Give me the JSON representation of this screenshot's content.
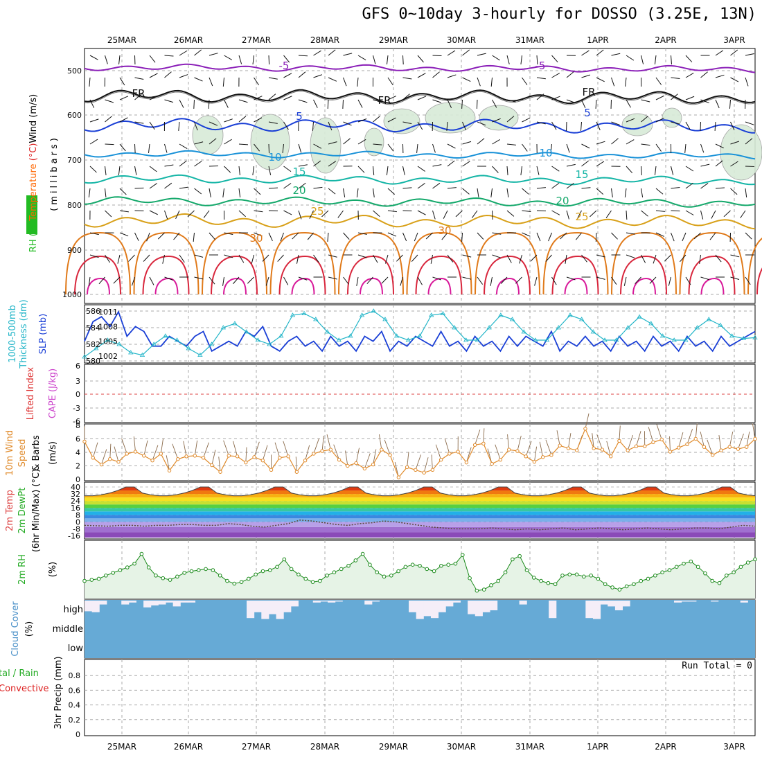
{
  "title": "GFS 0~10day 3-hourly for DOSSO (3.25E, 13N)",
  "colors": {
    "grid": "#a9a9a9",
    "purple": "#8b1fb8",
    "black": "#111111",
    "blue": "#1a3fd6",
    "sky": "#1a92d8",
    "teal": "#14b5a6",
    "green": "#13a86a",
    "gold": "#d8a018",
    "orange": "#e07a1a",
    "red": "#d8263c",
    "magenta": "#d81a9a",
    "cloud": "#66aad6",
    "cloudhigh": "#f5eef8",
    "rhfill": "#e6f3e6",
    "rhline": "#1a8a1a",
    "slp": "#1a3fd6",
    "thick": "#22b5c8",
    "wind": "#e08a2a",
    "precip_green": "#22aa22",
    "precip_red": "#dd2222"
  },
  "chart_data": [
    {
      "type": "contour",
      "panel": "upper-air",
      "ylabel_parts": [
        {
          "text": "RH (%)",
          "color": "#22bb22"
        },
        {
          "text": "Temperature",
          "color": "#ff6600"
        },
        {
          "text": " (°C)",
          "color": "#dd2222"
        },
        {
          "text": "Wind",
          "color": "#000000"
        },
        {
          "text": " (m/s)",
          "color": "#000000"
        }
      ],
      "ylabel2": "(millibars)",
      "y_ticks": [
        "500",
        "600",
        "700",
        "800",
        "900",
        "1000"
      ],
      "x_ticks": [
        "25MAR",
        "26MAR",
        "27MAR",
        "28MAR",
        "29MAR",
        "30MAR",
        "31MAR",
        "1APR",
        "2APR",
        "3APR"
      ],
      "contour_labels": [
        {
          "text": "-5",
          "color": "#8b1fb8",
          "x": 0.17,
          "y": [
            95
          ]
        },
        {
          "text": "-5",
          "color": "#8b1fb8",
          "x": 0.52,
          "y": [
            95
          ]
        },
        {
          "text": "FR",
          "color": "#111111",
          "x": 0.21,
          "y": [
            135
          ]
        },
        {
          "text": "FR",
          "color": "#111111",
          "x": 0.45,
          "y": [
            145
          ]
        },
        {
          "text": "FR",
          "color": "#111111",
          "x": 0.74,
          "y": [
            133
          ]
        },
        {
          "text": "5",
          "color": "#1a3fd6",
          "x": 0.32,
          "y": [
            168
          ]
        },
        {
          "text": "5",
          "color": "#1a3fd6",
          "x": 0.73,
          "y": [
            163
          ]
        },
        {
          "text": "10",
          "color": "#1a92d8",
          "x": 0.27,
          "y": [
            227
          ]
        },
        {
          "text": "10",
          "color": "#1a92d8",
          "x": 0.68,
          "y": [
            221
          ]
        },
        {
          "text": "15",
          "color": "#14b5a6",
          "x": 0.3,
          "y": [
            248
          ]
        },
        {
          "text": "15",
          "color": "#14b5a6",
          "x": 0.72,
          "y": [
            252
          ]
        },
        {
          "text": "20",
          "color": "#13a86a",
          "x": 0.3,
          "y": [
            275
          ]
        },
        {
          "text": "20",
          "color": "#13a86a",
          "x": 0.7,
          "y": [
            290
          ]
        },
        {
          "text": "25",
          "color": "#d8a018",
          "x": 0.32,
          "y": [
            305
          ]
        },
        {
          "text": "25",
          "color": "#d8a018",
          "x": 0.73,
          "y": [
            313
          ]
        },
        {
          "text": "30",
          "color": "#e07a1a",
          "x": 0.25,
          "y": [
            344
          ]
        },
        {
          "text": "30",
          "color": "#e07a1a",
          "x": 0.53,
          "y": [
            333
          ]
        }
      ]
    },
    {
      "type": "line",
      "panel": "slp-thickness",
      "ylabel_left": "1000-500mb",
      "ylabel_left2": "Thickness (dm)",
      "ylabel_right": "SLP (mb)",
      "y_ticks_left": [
        "586",
        "584",
        "582",
        "580"
      ],
      "y_ticks_right": [
        "1011",
        "1008",
        "1005",
        "1002"
      ],
      "series": [
        {
          "name": "SLP (mb)",
          "color": "#1a3fd6",
          "values": [
            1005,
            1009,
            1010,
            1008,
            1011,
            1006,
            1008,
            1007,
            1004,
            1004,
            1006,
            1005,
            1004,
            1006,
            1007,
            1003,
            1004,
            1005,
            1004,
            1007,
            1006,
            1008,
            1004,
            1003,
            1005,
            1006,
            1004,
            1005,
            1003,
            1006,
            1004,
            1005,
            1003,
            1006,
            1005,
            1007,
            1003,
            1005,
            1004,
            1006,
            1005,
            1004,
            1007,
            1004,
            1005,
            1003,
            1006,
            1004,
            1005,
            1003,
            1006,
            1004,
            1006,
            1005,
            1004,
            1007,
            1003,
            1005,
            1004,
            1006,
            1004,
            1005,
            1003,
            1006,
            1004,
            1005,
            1003,
            1006,
            1004,
            1005,
            1003,
            1006,
            1004,
            1005,
            1003,
            1006,
            1004,
            1005,
            1006,
            1007
          ]
        },
        {
          "name": "1000-500mb Thickness (dm)",
          "color": "#22b5c8",
          "values": [
            580.5,
            581.5,
            582.5,
            582,
            581,
            580.7,
            582,
            583,
            582.5,
            581.5,
            580.7,
            582,
            584,
            584.5,
            583.5,
            582.5,
            582,
            583,
            585.5,
            585.7,
            585,
            583.5,
            582.5,
            583,
            585.5,
            586,
            585,
            583,
            582.5,
            583,
            585.5,
            585.7,
            584,
            582.5,
            582.5,
            584,
            585.5,
            585,
            583.5,
            582.5,
            582.5,
            584,
            585.5,
            585,
            583.5,
            582.5,
            582.5,
            584,
            585.3,
            584.5,
            583,
            582.5,
            582.5,
            584,
            585,
            584.3,
            583,
            582.7,
            582.8
          ]
        }
      ]
    },
    {
      "type": "line",
      "panel": "cape-li",
      "ylabel_left": "Lifted Index",
      "ylabel_right": "CAPE (J/kg)",
      "y_ticks": [
        "6",
        "3",
        "0",
        "-3",
        "-6"
      ],
      "zero_line": 0
    },
    {
      "type": "line",
      "panel": "wind10m",
      "ylabel": "10m Wind",
      "ylabel2": "Speed",
      "ylabel3": "& Barbs",
      "ylabel4": "(m/s)",
      "y_ticks": [
        "8",
        "6",
        "4",
        "2",
        "0"
      ],
      "ylim": [
        0,
        8
      ],
      "series": [
        {
          "name": "Speed",
          "color": "#e08a2a",
          "values": [
            5.6,
            3.2,
            2.2,
            3.0,
            2.6,
            3.8,
            4.1,
            3.5,
            2.8,
            3.8,
            1.3,
            3.0,
            3.4,
            3.5,
            3.2,
            2.1,
            1.1,
            3.5,
            3.4,
            2.5,
            3.3,
            2.8,
            1.4,
            3.2,
            3.4,
            1.1,
            2.8,
            3.8,
            4.2,
            4.4,
            2.9,
            2.0,
            2.4,
            1.6,
            2.2,
            4.4,
            3.6,
            0.3,
            1.8,
            1.4,
            1.0,
            1.4,
            2.9,
            3.8,
            4.1,
            2.5,
            5.1,
            5.3,
            2.3,
            2.9,
            4.4,
            4.2,
            3.4,
            2.6,
            3.3,
            3.6,
            5.0,
            4.6,
            4.3,
            7.5,
            4.6,
            4.4,
            3.4,
            5.7,
            4.3,
            4.9,
            4.9,
            5.5,
            5.9,
            4.1,
            4.7,
            5.2,
            6.0,
            4.8,
            3.6,
            4.3,
            4.8,
            4.5,
            4.8,
            6.0
          ]
        }
      ]
    },
    {
      "type": "area",
      "panel": "temp2m",
      "ylabel": "2m Temp",
      "ylabel2": "2m DewPt",
      "ylabel3": "(6hr Min/Max) (°C)",
      "y_ticks": [
        "40",
        "32",
        "24",
        "16",
        "8",
        "0",
        "-8",
        "-16"
      ],
      "ylim": [
        -16,
        44
      ],
      "temp": [
        30,
        30,
        31,
        33,
        36,
        40,
        40,
        33,
        31,
        30,
        30,
        31,
        33,
        36,
        40,
        40,
        33,
        31,
        30,
        30,
        31,
        33,
        36,
        40,
        40,
        33,
        31,
        30,
        30,
        31,
        33,
        36,
        40,
        40,
        33,
        31,
        30,
        30,
        31,
        33,
        36,
        40,
        40,
        33,
        31,
        30,
        30,
        31,
        33,
        36,
        40,
        40,
        33,
        31,
        30,
        30,
        31,
        33,
        36,
        40,
        40,
        33,
        31,
        30,
        30,
        31,
        33,
        36,
        40,
        40,
        33,
        31,
        30,
        30,
        31,
        33,
        36,
        40,
        40,
        33,
        31,
        30
      ],
      "dewpt": [
        -4,
        -4.5,
        -5,
        -4,
        -4,
        -5,
        -4,
        -4,
        -3,
        -3,
        -4,
        -4,
        -2,
        -3,
        -5,
        -6,
        -4,
        -2,
        2,
        1,
        -1,
        -3,
        -4,
        -2,
        -1,
        1,
        0,
        -2,
        -4,
        -6,
        -7,
        -8,
        -8,
        -8,
        -7,
        -8,
        -9,
        -8,
        -9,
        -8,
        -7,
        -9,
        -8,
        -7,
        -8,
        -9,
        -8,
        -7,
        -8,
        -9,
        -8,
        -7,
        -7,
        -8,
        -6,
        -4,
        -5
      ]
    },
    {
      "type": "area",
      "panel": "rh2m",
      "ylabel": "2m RH",
      "ylabel2": "(%)",
      "ylim": [
        0,
        100
      ],
      "series": [
        {
          "name": "2m RH",
          "color": "#1a8a1a",
          "values": [
            30,
            32,
            34,
            40,
            45,
            50,
            55,
            62,
            80,
            55,
            40,
            35,
            32,
            38,
            45,
            48,
            50,
            52,
            50,
            40,
            30,
            25,
            28,
            34,
            42,
            48,
            50,
            56,
            70,
            52,
            42,
            34,
            28,
            30,
            40,
            46,
            52,
            58,
            68,
            80,
            60,
            46,
            38,
            40,
            48,
            56,
            60,
            58,
            52,
            48,
            58,
            60,
            62,
            78,
            35,
            12,
            14,
            22,
            30,
            46,
            70,
            76,
            50,
            36,
            30,
            26,
            24,
            40,
            42,
            42,
            38,
            40,
            34,
            24,
            18,
            14,
            20,
            24,
            30,
            34,
            40,
            46,
            50,
            56,
            62,
            66,
            56,
            44,
            30,
            26,
            40,
            46,
            56,
            64,
            70
          ]
        }
      ]
    },
    {
      "type": "bar",
      "panel": "cloud",
      "ylabel": "Cloud Cover",
      "ylabel2": "(%)",
      "y_ticks": [
        "high",
        "middle",
        "low"
      ],
      "high": [
        0.55,
        0.6,
        0.2,
        0,
        0,
        0.2,
        0.1,
        0,
        0.35,
        0.25,
        0.2,
        0.1,
        0.3,
        0.1,
        0.1,
        0,
        0,
        0,
        0,
        0,
        0,
        0,
        0.9,
        0.6,
        0.95,
        0.7,
        0.95,
        0.6,
        0.3,
        0,
        0,
        0.1,
        0.05,
        0.1,
        0.05,
        0,
        0,
        0,
        0.2,
        0.05,
        0,
        0,
        0,
        0,
        0.6,
        0.95,
        0.8,
        0.9,
        0.6,
        0.3,
        0.1,
        0,
        0.7,
        0.8,
        0.6,
        0.5,
        0,
        0,
        0,
        0.2,
        0,
        0,
        0,
        0.9,
        0,
        0,
        0,
        0,
        0.9,
        0.95,
        0.2,
        0.3,
        0.5,
        0.3,
        0,
        0,
        0,
        0,
        0,
        0,
        0.1,
        0.05,
        0.05,
        0,
        0,
        0.05,
        0,
        0,
        0,
        0.1,
        0
      ]
    },
    {
      "type": "bar",
      "panel": "precip",
      "ylabel_parts": [
        {
          "text": "tal / Rain",
          "color": "#22aa22"
        },
        {
          "text": "Convective",
          "color": "#dd2222"
        }
      ],
      "ylabel2": "3hr Precip (mm)",
      "y_ticks": [
        "0.8",
        "0.6",
        "0.4",
        "0.2",
        "0"
      ],
      "ylim": [
        0,
        1
      ],
      "run_total": "Run Total = 0",
      "values": []
    }
  ]
}
